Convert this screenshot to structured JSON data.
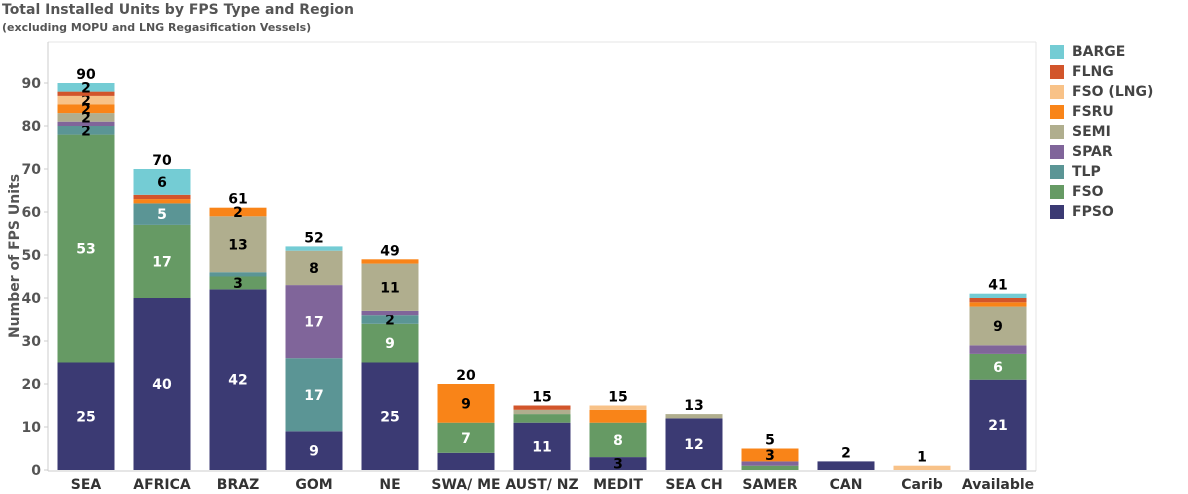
{
  "title": "Total Installed Units by FPS Type and Region",
  "subtitle": "(excluding MOPU and LNG Regasification Vessels)",
  "chart_data": {
    "type": "bar",
    "stacked": true,
    "ylabel": "Number of FPS Units",
    "xlabel": "",
    "ylim": [
      0,
      95
    ],
    "yticks": [
      0,
      10,
      20,
      30,
      40,
      50,
      60,
      70,
      80,
      90
    ],
    "grid": false,
    "legend_position": "right",
    "categories": [
      "SEA",
      "AFRICA",
      "BRAZ",
      "GOM",
      "NE",
      "SWA/ ME",
      "AUST/ NZ",
      "MEDIT",
      "SEA CH",
      "SAMER",
      "CAN",
      "Carib",
      "Available"
    ],
    "totals": [
      90,
      70,
      61,
      52,
      49,
      20,
      15,
      15,
      13,
      5,
      2,
      1,
      41
    ],
    "series": [
      {
        "name": "FPSO",
        "color": "#3b3a73",
        "values": [
          25,
          40,
          42,
          9,
          25,
          4,
          11,
          3,
          12,
          0,
          2,
          0,
          21
        ]
      },
      {
        "name": "FSO",
        "color": "#669a64",
        "values": [
          53,
          17,
          3,
          0,
          9,
          7,
          2,
          8,
          0,
          1,
          0,
          0,
          6
        ]
      },
      {
        "name": "TLP",
        "color": "#5b9595",
        "values": [
          2,
          5,
          1,
          17,
          2,
          0,
          0,
          0,
          0,
          0,
          0,
          0,
          0
        ]
      },
      {
        "name": "SPAR",
        "color": "#80659a",
        "values": [
          1,
          0,
          0,
          17,
          1,
          0,
          0,
          0,
          0,
          1,
          0,
          0,
          2
        ]
      },
      {
        "name": "SEMI",
        "color": "#b0ae8e",
        "values": [
          2,
          0,
          13,
          8,
          11,
          0,
          1,
          0,
          1,
          0,
          0,
          0,
          9
        ]
      },
      {
        "name": "FSRU",
        "color": "#f98418",
        "values": [
          2,
          1,
          2,
          0,
          1,
          9,
          0,
          3,
          0,
          3,
          0,
          0,
          1
        ]
      },
      {
        "name": "FSO (LNG)",
        "color": "#f8c288",
        "values": [
          2,
          0,
          0,
          0,
          0,
          0,
          0,
          1,
          0,
          0,
          0,
          1,
          0
        ]
      },
      {
        "name": "FLNG",
        "color": "#d2552b",
        "values": [
          1,
          1,
          0,
          0,
          0,
          0,
          1,
          0,
          0,
          0,
          0,
          0,
          1
        ]
      },
      {
        "name": "BARGE",
        "color": "#74ccd4",
        "values": [
          2,
          6,
          0,
          1,
          0,
          0,
          0,
          0,
          0,
          0,
          0,
          0,
          1
        ]
      }
    ],
    "data_labels": [
      {
        "category": "SEA",
        "series": "FPSO",
        "text": "25"
      },
      {
        "category": "SEA",
        "series": "FSO",
        "text": "53"
      },
      {
        "category": "SEA",
        "series": "TLP",
        "text": "2"
      },
      {
        "category": "SEA",
        "series": "SEMI",
        "text": "2"
      },
      {
        "category": "SEA",
        "series": "FSRU",
        "text": "2"
      },
      {
        "category": "SEA",
        "series": "FSO (LNG)",
        "text": "2"
      },
      {
        "category": "SEA",
        "series": "BARGE",
        "text": "2"
      },
      {
        "category": "AFRICA",
        "series": "FPSO",
        "text": "40"
      },
      {
        "category": "AFRICA",
        "series": "FSO",
        "text": "17"
      },
      {
        "category": "AFRICA",
        "series": "TLP",
        "text": "5"
      },
      {
        "category": "AFRICA",
        "series": "BARGE",
        "text": "6"
      },
      {
        "category": "BRAZ",
        "series": "FPSO",
        "text": "42"
      },
      {
        "category": "BRAZ",
        "series": "FSO",
        "text": "3"
      },
      {
        "category": "BRAZ",
        "series": "SEMI",
        "text": "13"
      },
      {
        "category": "BRAZ",
        "series": "FSRU",
        "text": "2"
      },
      {
        "category": "GOM",
        "series": "FPSO",
        "text": "9"
      },
      {
        "category": "GOM",
        "series": "TLP",
        "text": "17"
      },
      {
        "category": "GOM",
        "series": "SPAR",
        "text": "17"
      },
      {
        "category": "GOM",
        "series": "SEMI",
        "text": "8"
      },
      {
        "category": "NE",
        "series": "FPSO",
        "text": "25"
      },
      {
        "category": "NE",
        "series": "FSO",
        "text": "9"
      },
      {
        "category": "NE",
        "series": "TLP",
        "text": "2"
      },
      {
        "category": "NE",
        "series": "SEMI",
        "text": "11"
      },
      {
        "category": "SWA/ ME",
        "series": "FSO",
        "text": "7"
      },
      {
        "category": "SWA/ ME",
        "series": "FSRU",
        "text": "9"
      },
      {
        "category": "AUST/ NZ",
        "series": "FPSO",
        "text": "11"
      },
      {
        "category": "MEDIT",
        "series": "FPSO",
        "text": "3"
      },
      {
        "category": "MEDIT",
        "series": "FSO",
        "text": "8"
      },
      {
        "category": "SEA CH",
        "series": "FPSO",
        "text": "12"
      },
      {
        "category": "SAMER",
        "series": "FSRU",
        "text": "3"
      },
      {
        "category": "Available",
        "series": "FPSO",
        "text": "21"
      },
      {
        "category": "Available",
        "series": "FSO",
        "text": "6"
      },
      {
        "category": "Available",
        "series": "SEMI",
        "text": "9"
      }
    ],
    "legend_order": [
      "BARGE",
      "FLNG",
      "FSO (LNG)",
      "FSRU",
      "SEMI",
      "SPAR",
      "TLP",
      "FSO",
      "FPSO"
    ]
  }
}
